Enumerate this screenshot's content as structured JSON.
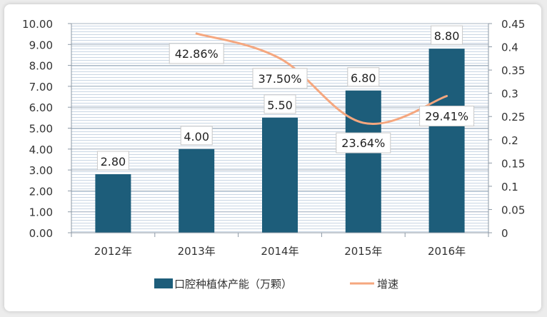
{
  "chart_data": {
    "type": "bar",
    "categories": [
      "2012年",
      "2013年",
      "2014年",
      "2015年",
      "2016年"
    ],
    "series": [
      {
        "name": "口腔种植体产能（万颗）",
        "axis": "left",
        "chart_type": "bar",
        "values": [
          2.8,
          4.0,
          5.5,
          6.8,
          8.8
        ],
        "labels": [
          "2.80",
          "4.00",
          "5.50",
          "6.80",
          "8.80"
        ],
        "color": "#1d5d7a"
      },
      {
        "name": "增速",
        "axis": "right",
        "chart_type": "line",
        "values": [
          null,
          0.4286,
          0.375,
          0.2364,
          0.2941
        ],
        "labels": [
          "",
          "42.86%",
          "37.50%",
          "23.64%",
          "29.41%"
        ],
        "color": "#f5a77f"
      }
    ],
    "y_left": {
      "lim": [
        0,
        10
      ],
      "ticks": [
        "0.00",
        "1.00",
        "2.00",
        "3.00",
        "4.00",
        "5.00",
        "6.00",
        "7.00",
        "8.00",
        "9.00",
        "10.00"
      ]
    },
    "y_right": {
      "lim": [
        0,
        0.45
      ],
      "ticks": [
        "0",
        "0.05",
        "0.1",
        "0.15",
        "0.2",
        "0.25",
        "0.3",
        "0.35",
        "0.4",
        "0.45"
      ]
    },
    "grid": true,
    "legend_position": "bottom"
  }
}
